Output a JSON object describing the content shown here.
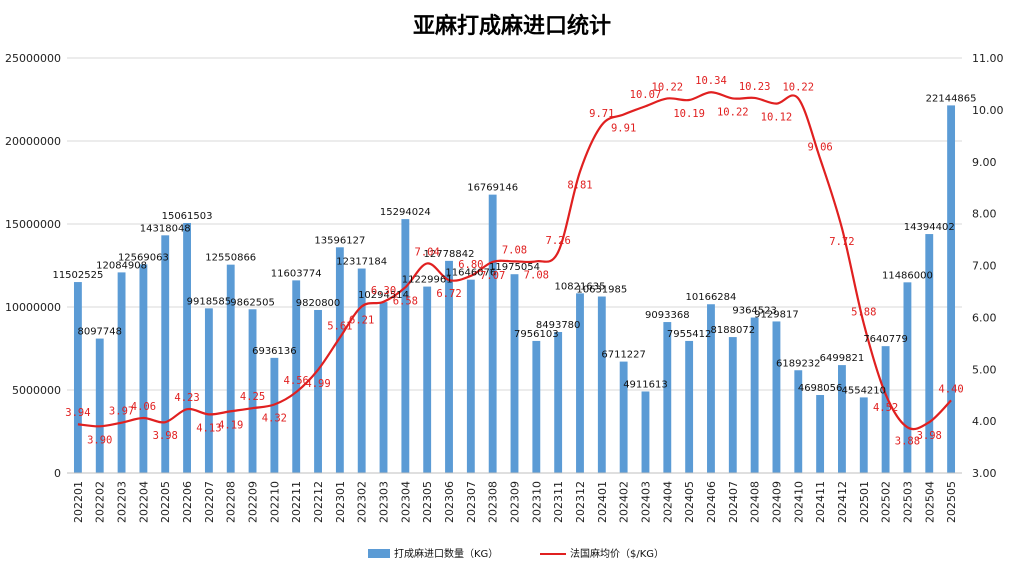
{
  "chart_data": {
    "type": "bar",
    "title": "亚麻打成麻进口统计",
    "categories": [
      "202201",
      "202202",
      "202203",
      "202204",
      "202205",
      "202206",
      "202207",
      "202208",
      "202209",
      "202210",
      "202211",
      "202212",
      "202301",
      "202302",
      "202303",
      "202304",
      "202305",
      "202306",
      "202307",
      "202308",
      "202309",
      "202310",
      "202311",
      "202312",
      "202401",
      "202402",
      "202403",
      "202404",
      "202405",
      "202406",
      "202407",
      "202408",
      "202409",
      "202410",
      "202411",
      "202412",
      "202501",
      "202502",
      "202503",
      "202504",
      "202505"
    ],
    "series": [
      {
        "name": "打成麻进口数量（KG）",
        "type": "bar",
        "axis": "left",
        "color": "#5b9bd5",
        "values": [
          11502525,
          8097748,
          12084908,
          12569063,
          14318048,
          15061503,
          9918585,
          12550866,
          9862505,
          6936136,
          11603774,
          9820800,
          13596127,
          12317184,
          10294514,
          15294024,
          11229961,
          12778842,
          11646076,
          16769146,
          11975054,
          7956103,
          8493780,
          10821635,
          10631985,
          6711227,
          4911613,
          9093368,
          7955412,
          10166284,
          8188072,
          9364523,
          9129817,
          6189232,
          4698056,
          6499821,
          4554210,
          7640779,
          11486000,
          14394402,
          22144865
        ],
        "labels": [
          "11502525",
          "8097748",
          "12084908",
          "12569063",
          "14318048",
          "15061503",
          "9918585",
          "12550866",
          "9862505",
          "6936136",
          "11603774",
          "9820800",
          "13596127",
          "12317184",
          "10294514",
          "15294024",
          "11229961",
          "12778842",
          "11646076",
          "16769146",
          "11975054",
          "7956103",
          "8493780",
          "10821635",
          "10631985",
          "6711227",
          "4911613",
          "9093368",
          "7955412",
          "10166284",
          "8188072",
          "9364523",
          "9129817",
          "6189232",
          "4698056",
          "6499821",
          "4554210",
          "7640779",
          "11486000",
          "14394402",
          "22144865"
        ]
      },
      {
        "name": "法国麻均价（$/KG）",
        "type": "line",
        "axis": "right",
        "color": "#e02020",
        "values": [
          3.94,
          3.9,
          3.97,
          4.06,
          3.98,
          4.23,
          4.13,
          4.19,
          4.25,
          4.32,
          4.56,
          4.99,
          5.61,
          6.21,
          6.3,
          6.58,
          7.04,
          6.72,
          6.8,
          7.07,
          7.08,
          7.08,
          7.26,
          8.81,
          9.71,
          9.91,
          10.07,
          10.22,
          10.19,
          10.34,
          10.22,
          10.23,
          10.12,
          10.22,
          9.06,
          7.72,
          5.88,
          4.52,
          3.88,
          3.98,
          4.4
        ],
        "labels": [
          "3.94",
          "3.90",
          "3.97",
          "4.06",
          "3.98",
          "4.23",
          "4.13",
          "4.19",
          "4.25",
          "4.32",
          "4.56",
          "4.99",
          "5.61",
          "6.21",
          "6.30",
          "6.58",
          "7.04",
          "6.72",
          "6.80",
          "7.07",
          "7.08",
          "7.08",
          "7.26",
          "8.81",
          "9.71",
          "9.91",
          "10.07",
          "10.22",
          "10.19",
          "10.34",
          "10.22",
          "10.23",
          "10.12",
          "10.22",
          "9.06",
          "7.72",
          "5.88",
          "4.52",
          "3.88",
          "3.98",
          "4.40"
        ]
      }
    ],
    "y_left": {
      "min": 0,
      "max": 25000000,
      "ticks": [
        "0",
        "5000000",
        "10000000",
        "15000000",
        "20000000",
        "25000000"
      ]
    },
    "y_right": {
      "min": 3,
      "max": 11,
      "ticks": [
        "3.00",
        "4.00",
        "5.00",
        "6.00",
        "7.00",
        "8.00",
        "9.00",
        "10.00",
        "11.00"
      ]
    },
    "grid": true,
    "legend_position": "bottom"
  }
}
